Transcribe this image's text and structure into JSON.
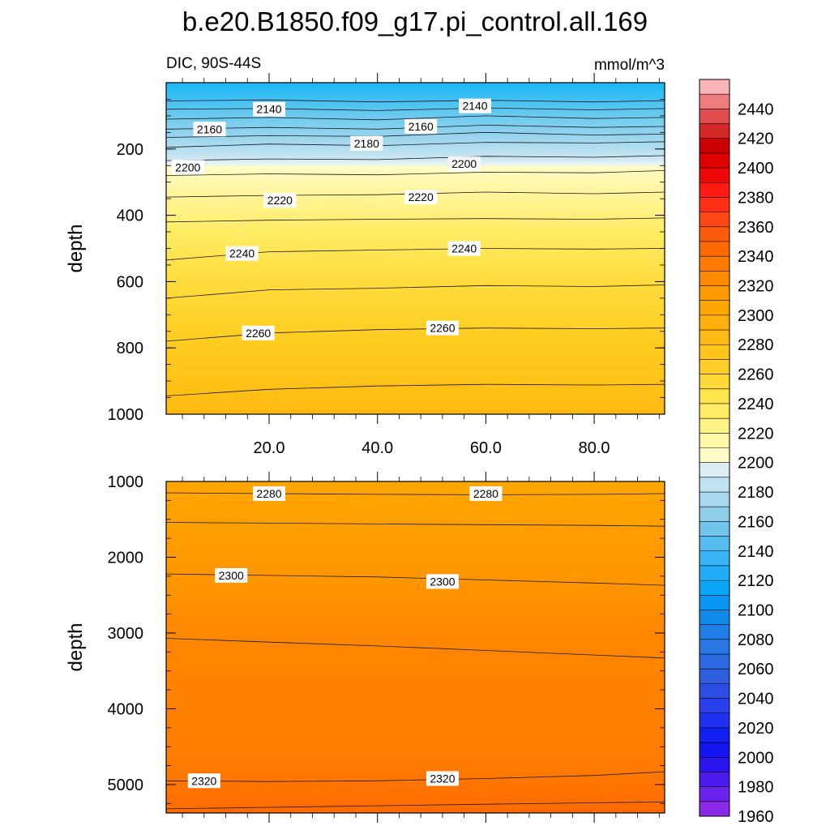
{
  "title": "b.e20.B1850.f09_g17.pi_control.all.169",
  "subtitle_left": "DIC, 90S-44S",
  "subtitle_right": "mmol/m^3",
  "chart_data": [
    {
      "type": "contour",
      "panel": "upper",
      "ylabel": "depth",
      "xlabel": "",
      "xlim": [
        1,
        93
      ],
      "ylim": [
        1000,
        0
      ],
      "xticks": [
        20.0,
        40.0,
        60.0,
        80.0
      ],
      "xtick_labels": [
        "20.0",
        "40.0",
        "60.0",
        "80.0"
      ],
      "yticks": [
        200,
        400,
        600,
        800,
        1000
      ],
      "ytick_labels": [
        "200",
        "400",
        "600",
        "800",
        "1000"
      ],
      "contours": [
        {
          "level": 2130,
          "x": [
            1,
            20,
            40,
            60,
            80,
            93
          ],
          "depth": [
            55,
            52,
            58,
            53,
            58,
            54
          ]
        },
        {
          "level": 2140,
          "x": [
            1,
            20,
            40,
            60,
            80,
            93
          ],
          "depth": [
            80,
            78,
            84,
            76,
            82,
            78
          ]
        },
        {
          "level": 2150,
          "x": [
            1,
            20,
            40,
            60,
            80,
            93
          ],
          "depth": [
            110,
            105,
            112,
            100,
            108,
            105
          ]
        },
        {
          "level": 2160,
          "x": [
            1,
            20,
            40,
            60,
            80,
            93
          ],
          "depth": [
            140,
            135,
            140,
            128,
            135,
            132
          ]
        },
        {
          "level": 2170,
          "x": [
            1,
            20,
            40,
            60,
            80,
            93
          ],
          "depth": [
            165,
            160,
            162,
            150,
            158,
            155
          ]
        },
        {
          "level": 2180,
          "x": [
            1,
            20,
            40,
            60,
            80,
            93
          ],
          "depth": [
            195,
            185,
            190,
            180,
            182,
            178
          ]
        },
        {
          "level": 2190,
          "x": [
            1,
            20,
            40,
            60,
            80,
            93
          ],
          "depth": [
            235,
            230,
            232,
            222,
            225,
            220
          ]
        },
        {
          "level": 2200,
          "x": [
            1,
            20,
            40,
            60,
            80,
            93
          ],
          "depth": [
            280,
            275,
            278,
            270,
            272,
            265
          ]
        },
        {
          "level": 2210,
          "x": [
            1,
            20,
            40,
            60,
            80,
            93
          ],
          "depth": [
            345,
            340,
            338,
            330,
            335,
            330
          ]
        },
        {
          "level": 2220,
          "x": [
            1,
            20,
            40,
            60,
            80,
            93
          ],
          "depth": [
            420,
            415,
            412,
            410,
            412,
            408
          ]
        },
        {
          "level": 2230,
          "x": [
            1,
            20,
            40,
            60,
            80,
            93
          ],
          "depth": [
            535,
            510,
            505,
            500,
            502,
            500
          ]
        },
        {
          "level": 2240,
          "x": [
            1,
            20,
            40,
            60,
            80,
            93
          ],
          "depth": [
            650,
            625,
            620,
            612,
            615,
            610
          ]
        },
        {
          "level": 2250,
          "x": [
            1,
            20,
            40,
            60,
            80,
            93
          ],
          "depth": [
            780,
            755,
            745,
            740,
            742,
            740
          ]
        },
        {
          "level": 2260,
          "x": [
            1,
            20,
            40,
            60,
            80,
            93
          ],
          "depth": [
            945,
            925,
            915,
            910,
            912,
            910
          ]
        }
      ],
      "contour_labels": [
        {
          "text": "2140",
          "x": 20,
          "depth": 80
        },
        {
          "text": "2140",
          "x": 58,
          "depth": 70
        },
        {
          "text": "2160",
          "x": 9,
          "depth": 140
        },
        {
          "text": "2160",
          "x": 48,
          "depth": 132
        },
        {
          "text": "2180",
          "x": 38,
          "depth": 183
        },
        {
          "text": "2200",
          "x": 5,
          "depth": 255
        },
        {
          "text": "2200",
          "x": 56,
          "depth": 245
        },
        {
          "text": "2220",
          "x": 22,
          "depth": 355
        },
        {
          "text": "2220",
          "x": 48,
          "depth": 345
        },
        {
          "text": "2240",
          "x": 15,
          "depth": 515
        },
        {
          "text": "2240",
          "x": 56,
          "depth": 500
        },
        {
          "text": "2260",
          "x": 18,
          "depth": 755
        },
        {
          "text": "2260",
          "x": 52,
          "depth": 740
        }
      ]
    },
    {
      "type": "contour",
      "panel": "lower",
      "ylabel": "depth",
      "xlabel": "",
      "xlim": [
        1,
        93
      ],
      "ylim": [
        5375,
        1000
      ],
      "yticks": [
        1000,
        2000,
        3000,
        4000,
        5000
      ],
      "ytick_labels": [
        "1000",
        "2000",
        "3000",
        "4000",
        "5000"
      ],
      "contours": [
        {
          "level": 2280,
          "x": [
            1,
            20,
            40,
            60,
            80,
            93
          ],
          "depth": [
            1150,
            1160,
            1170,
            1175,
            1170,
            1160
          ]
        },
        {
          "level": 2290,
          "x": [
            1,
            20,
            40,
            60,
            80,
            93
          ],
          "depth": [
            1540,
            1550,
            1560,
            1570,
            1580,
            1590
          ]
        },
        {
          "level": 2300,
          "x": [
            1,
            20,
            40,
            60,
            80,
            93
          ],
          "depth": [
            2220,
            2240,
            2260,
            2300,
            2340,
            2370
          ]
        },
        {
          "level": 2310,
          "x": [
            1,
            20,
            40,
            60,
            80,
            93
          ],
          "depth": [
            3070,
            3120,
            3170,
            3230,
            3290,
            3330
          ]
        },
        {
          "level": 2320,
          "x": [
            1,
            20,
            40,
            60,
            80,
            93
          ],
          "depth": [
            4950,
            4960,
            4950,
            4920,
            4880,
            4830
          ]
        },
        {
          "level": 2330,
          "x": [
            1,
            20,
            40,
            60,
            80,
            93
          ],
          "depth": [
            5320,
            5300,
            5280,
            5260,
            5240,
            5230
          ]
        }
      ],
      "contour_labels": [
        {
          "text": "2280",
          "x": 20,
          "depth": 1160
        },
        {
          "text": "2280",
          "x": 60,
          "depth": 1160
        },
        {
          "text": "2300",
          "x": 13,
          "depth": 2240
        },
        {
          "text": "2300",
          "x": 52,
          "depth": 2320
        },
        {
          "text": "2320",
          "x": 8,
          "depth": 4950
        },
        {
          "text": "2320",
          "x": 52,
          "depth": 4920
        }
      ]
    }
  ],
  "colorbar": {
    "labels": [
      "2440",
      "2420",
      "2400",
      "2380",
      "2360",
      "2340",
      "2320",
      "2300",
      "2280",
      "2260",
      "2240",
      "2220",
      "2200",
      "2180",
      "2160",
      "2140",
      "2120",
      "2100",
      "2080",
      "2060",
      "2040",
      "2020",
      "2000",
      "1980",
      "1960"
    ],
    "colors": [
      "#fbb4b6",
      "#ef7d80",
      "#e44d50",
      "#d42626",
      "#cc0000",
      "#e00000",
      "#f00808",
      "#ff1a12",
      "#ff2e14",
      "#ff4812",
      "#ff5b0a",
      "#ff6a00",
      "#ff7a00",
      "#ff8a00",
      "#ff9a00",
      "#ffa600",
      "#ffb00f",
      "#ffbb14",
      "#ffc51c",
      "#ffcf28",
      "#ffd938",
      "#ffe44c",
      "#ffec64",
      "#fff388",
      "#fff8a8",
      "#fffcc8",
      "#dcedf6",
      "#c0e2f2",
      "#a8d8ee",
      "#90cdea",
      "#72c4ec",
      "#55bcf0",
      "#38b4f6",
      "#20aef8",
      "#0aa6fa",
      "#0698f4",
      "#108ae8",
      "#1e7ee6",
      "#2876e6",
      "#2d6ae2",
      "#2e5ede",
      "#2c4ee6",
      "#2a40ec",
      "#2030f0",
      "#1020f0",
      "#1414f0",
      "#2a14f0",
      "#4a1aee",
      "#6a22ec",
      "#8a2ae8"
    ]
  }
}
